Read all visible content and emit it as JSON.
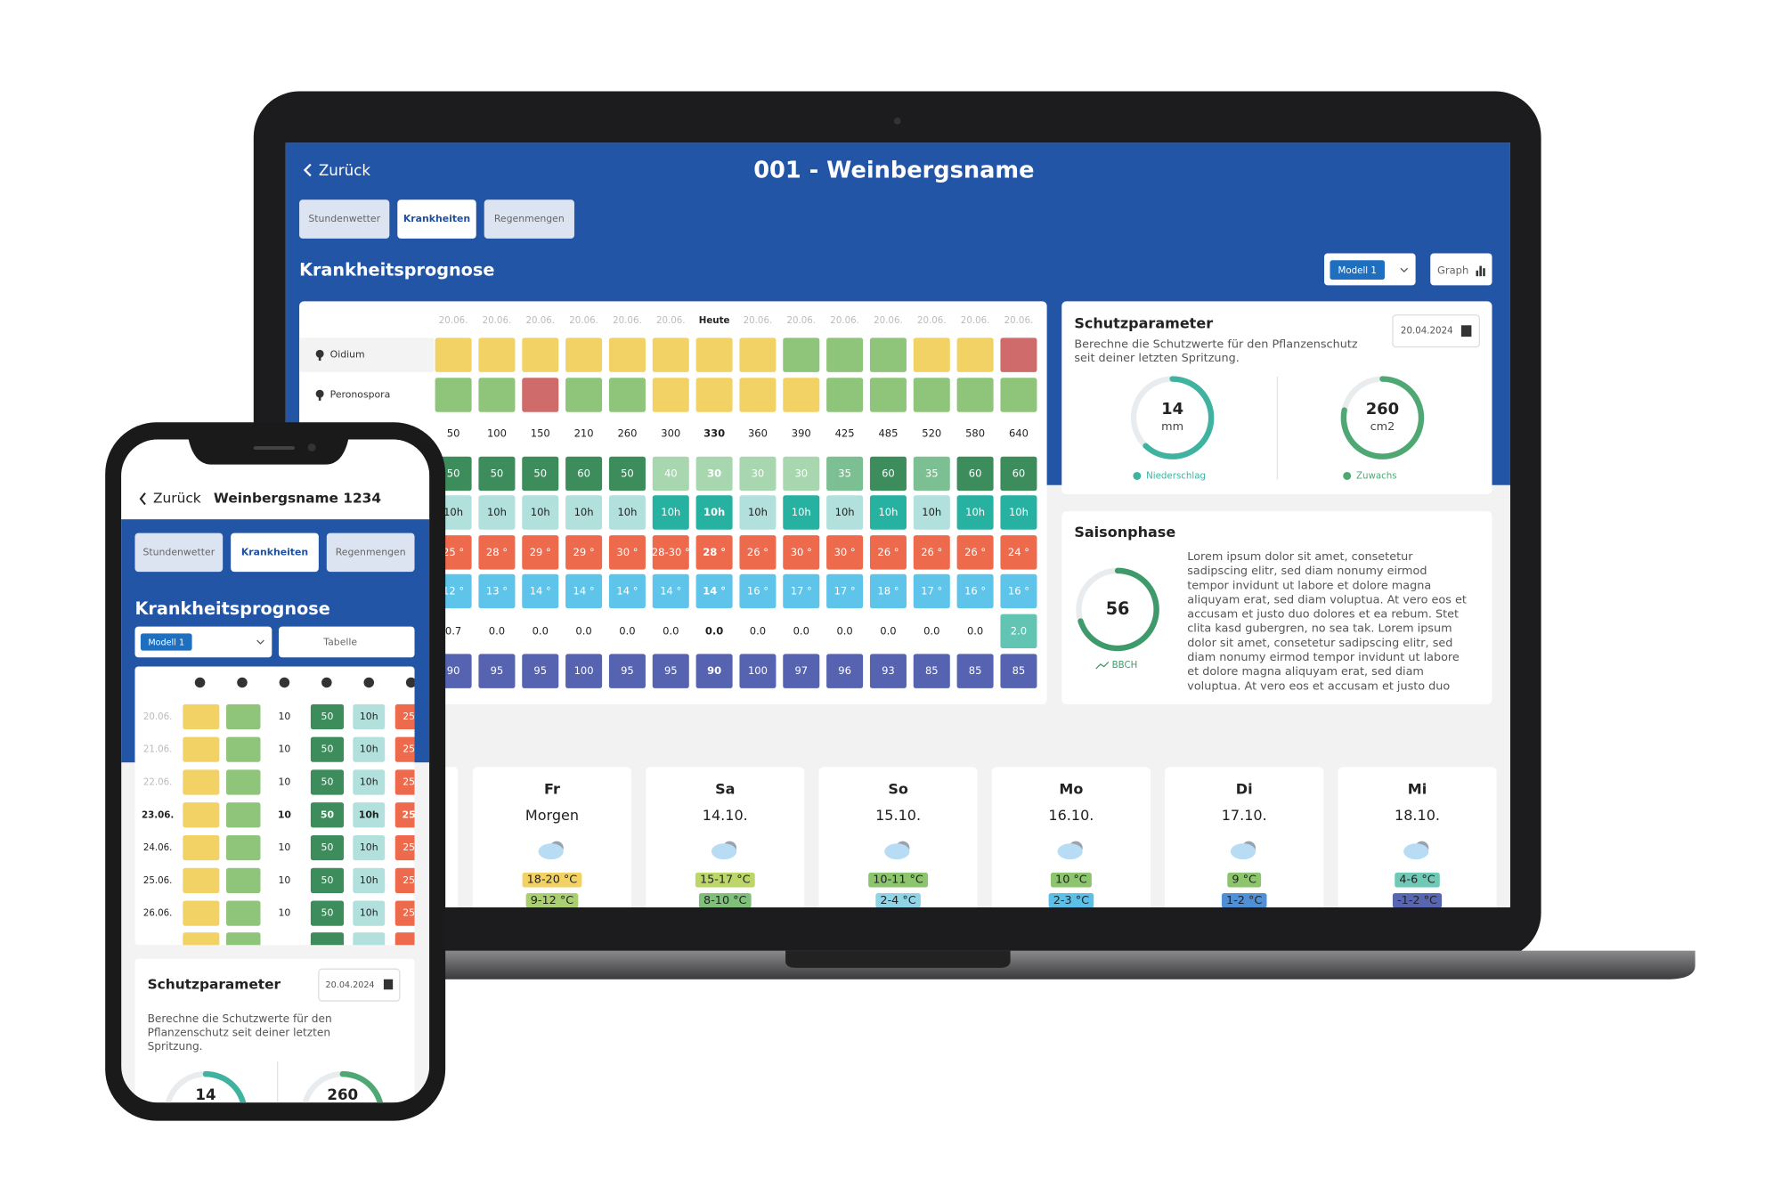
{
  "palette": {
    "y": "#f2d264",
    "g": "#8fc57a",
    "r": "#cf6b6b",
    "w": "#ffffff",
    "dg": "#3d8c5c",
    "lg": "#a8d6ae",
    "mg": "#7cbf93",
    "t": "#27b1a1",
    "lt": "#b2e0dc",
    "o": "#ee6a4c",
    "b": "#5ec4ea",
    "i": "#5663b1",
    "tl": "#62c4b3"
  },
  "laptop": {
    "back": "Zurück",
    "title": "001 - Weinbergsname",
    "tabs": [
      "Stundenwetter",
      "Krankheiten",
      "Regenmengen"
    ],
    "active_tab": 1,
    "section_title": "Krankheitsprognose",
    "model": "Modell 1",
    "graph_button": "Graph",
    "table": {
      "dates": [
        "20.06.",
        "20.06.",
        "20.06.",
        "20.06.",
        "20.06.",
        "20.06.",
        "Heute",
        "20.06.",
        "20.06.",
        "20.06.",
        "20.06.",
        "20.06.",
        "20.06.",
        "20.06."
      ],
      "today_index": 6,
      "rows": [
        {
          "label": "Oidium",
          "colors": [
            "y",
            "y",
            "y",
            "y",
            "y",
            "y",
            "y",
            "y",
            "g",
            "g",
            "g",
            "y",
            "y",
            "r"
          ]
        },
        {
          "label": "Peronospora",
          "colors": [
            "g",
            "g",
            "r",
            "g",
            "g",
            "y",
            "y",
            "y",
            "y",
            "g",
            "g",
            "g",
            "g",
            "g"
          ]
        },
        {
          "values": [
            "50",
            "100",
            "150",
            "210",
            "260",
            "300",
            "330",
            "360",
            "390",
            "425",
            "485",
            "520",
            "580",
            "640"
          ],
          "colors": [
            "w",
            "w",
            "w",
            "w",
            "w",
            "w",
            "w",
            "w",
            "w",
            "w",
            "w",
            "w",
            "w",
            "w"
          ]
        },
        {
          "values": [
            "50",
            "50",
            "50",
            "60",
            "50",
            "40",
            "30",
            "30",
            "30",
            "35",
            "60",
            "35",
            "60",
            "60"
          ],
          "colors": [
            "dg",
            "dg",
            "dg",
            "dg",
            "dg",
            "lg",
            "lg",
            "lg",
            "lg",
            "mg",
            "dg",
            "mg",
            "dg",
            "dg"
          ]
        },
        {
          "values": [
            "10h",
            "10h",
            "10h",
            "10h",
            "10h",
            "10h",
            "10h",
            "10h",
            "10h",
            "10h",
            "10h",
            "10h",
            "10h",
            "10h"
          ],
          "colors": [
            "lt",
            "lt",
            "lt",
            "lt",
            "lt",
            "t",
            "t",
            "lt",
            "t",
            "lt",
            "t",
            "lt",
            "t",
            "t"
          ]
        },
        {
          "values": [
            "25 °",
            "28 °",
            "29 °",
            "29 °",
            "30 °",
            "28-30 °",
            "28 °",
            "26 °",
            "30 °",
            "30 °",
            "26 °",
            "26 °",
            "26 °",
            "24 °"
          ],
          "colors": [
            "o",
            "o",
            "o",
            "o",
            "o",
            "o",
            "o",
            "o",
            "o",
            "o",
            "o",
            "o",
            "o",
            "o"
          ]
        },
        {
          "values": [
            "12 °",
            "13 °",
            "14 °",
            "14 °",
            "14 °",
            "14 °",
            "14 °",
            "16 °",
            "17 °",
            "17 °",
            "18 °",
            "17 °",
            "16 °",
            "16 °"
          ],
          "colors": [
            "b",
            "b",
            "b",
            "b",
            "b",
            "b",
            "b",
            "b",
            "b",
            "b",
            "b",
            "b",
            "b",
            "b"
          ]
        },
        {
          "values": [
            "0.7",
            "0.0",
            "0.0",
            "0.0",
            "0.0",
            "0.0",
            "0.0",
            "0.0",
            "0.0",
            "0.0",
            "0.0",
            "0.0",
            "0.0",
            "2.0"
          ],
          "colors": [
            "w",
            "w",
            "w",
            "w",
            "w",
            "w",
            "w",
            "w",
            "w",
            "w",
            "w",
            "w",
            "w",
            "tl"
          ]
        },
        {
          "values": [
            "90",
            "95",
            "95",
            "100",
            "95",
            "95",
            "90",
            "100",
            "97",
            "96",
            "93",
            "85",
            "85",
            "85"
          ],
          "colors": [
            "i",
            "i",
            "i",
            "i",
            "i",
            "i",
            "i",
            "i",
            "i",
            "i",
            "i",
            "i",
            "i",
            "i"
          ]
        }
      ]
    },
    "protection": {
      "title": "Schutzparameter",
      "date": "20.04.2024",
      "description": [
        "Berechne die Schutzwerte für den Pflanzenschutz",
        "seit deiner letzten Spritzung."
      ],
      "gauges": [
        {
          "value": "14",
          "unit": "mm",
          "label": "Niederschlag"
        },
        {
          "value": "260",
          "unit": "cm2",
          "label": "Zuwachs"
        }
      ]
    },
    "season": {
      "title": "Saisonphase",
      "value": "56",
      "label": "BBCH",
      "text": [
        "Lorem ipsum dolor sit amet, consetetur",
        "sadipscing elitr, sed diam nonumy eirmod",
        "tempor invidunt ut labore et dolore magna",
        "aliquyam erat, sed diam voluptua. At vero eos et",
        "accusam et justo duo dolores et ea rebum. Stet",
        "clita kasd gubergren, no sea tak. Lorem ipsum",
        "dolor sit amet, consetetur sadipscing elitr, sed",
        "diam nonumy eirmod tempor invidunt ut labore",
        "et dolore magna aliquyam erat, sed diam",
        "voluptua. At vero eos et accusam et justo duo"
      ]
    },
    "forecast": [
      {
        "day": "Fr",
        "date": "Morgen",
        "high": "18-20 °C",
        "low": "9-12 °C",
        "high_color": "#f2d264",
        "low_color": "#a9cf70"
      },
      {
        "day": "Sa",
        "date": "14.10.",
        "high": "15-17 °C",
        "low": "8-10 °C",
        "high_color": "#bcd66a",
        "low_color": "#7fbf7a"
      },
      {
        "day": "So",
        "date": "15.10.",
        "high": "10-11 °C",
        "low": "2-4 °C",
        "high_color": "#8cc56e",
        "low_color": "#8fd3e6"
      },
      {
        "day": "Mo",
        "date": "16.10.",
        "high": "10 °C",
        "low": "2-3 °C",
        "high_color": "#8cc56e",
        "low_color": "#5bbfe8"
      },
      {
        "day": "Di",
        "date": "17.10.",
        "high": "9 °C",
        "low": "1-2 °C",
        "high_color": "#8cc56e",
        "low_color": "#4f8fd6"
      },
      {
        "day": "Mi",
        "date": "18.10.",
        "high": "4-6 °C",
        "low": "-1-2 °C",
        "high_color": "#6fc9b6",
        "low_color": "#5865b0"
      }
    ]
  },
  "phone": {
    "back": "Zurück",
    "title": "Weinbergsname 1234",
    "tabs": [
      "Stundenwetter",
      "Krankheiten",
      "Regenmengen"
    ],
    "active_tab": 1,
    "section_title": "Krankheitsprognose",
    "model": "Modell 1",
    "view": "Tabelle",
    "table": {
      "column_colors": [
        "y",
        "g",
        "w",
        "dg",
        "lt",
        "o"
      ],
      "today_index": 3,
      "rows": [
        {
          "date": "20.06.",
          "values": [
            "10",
            "50",
            "10h",
            "25"
          ]
        },
        {
          "date": "21.06.",
          "values": [
            "10",
            "50",
            "10h",
            "25"
          ]
        },
        {
          "date": "22.06.",
          "values": [
            "10",
            "50",
            "10h",
            "25"
          ]
        },
        {
          "date": "23.06.",
          "values": [
            "10",
            "50",
            "10h",
            "25"
          ]
        },
        {
          "date": "24.06.",
          "values": [
            "10",
            "50",
            "10h",
            "25"
          ]
        },
        {
          "date": "25.06.",
          "values": [
            "10",
            "50",
            "10h",
            "25"
          ]
        },
        {
          "date": "26.06.",
          "values": [
            "10",
            "50",
            "10h",
            "25"
          ]
        }
      ]
    },
    "protection": {
      "title": "Schutzparameter",
      "date": "20.04.2024",
      "description": [
        "Berechne die Schutzwerte für den",
        "Pflanzenschutz seit deiner letzten",
        "Spritzung."
      ],
      "gauges": [
        "14",
        "260"
      ]
    }
  }
}
